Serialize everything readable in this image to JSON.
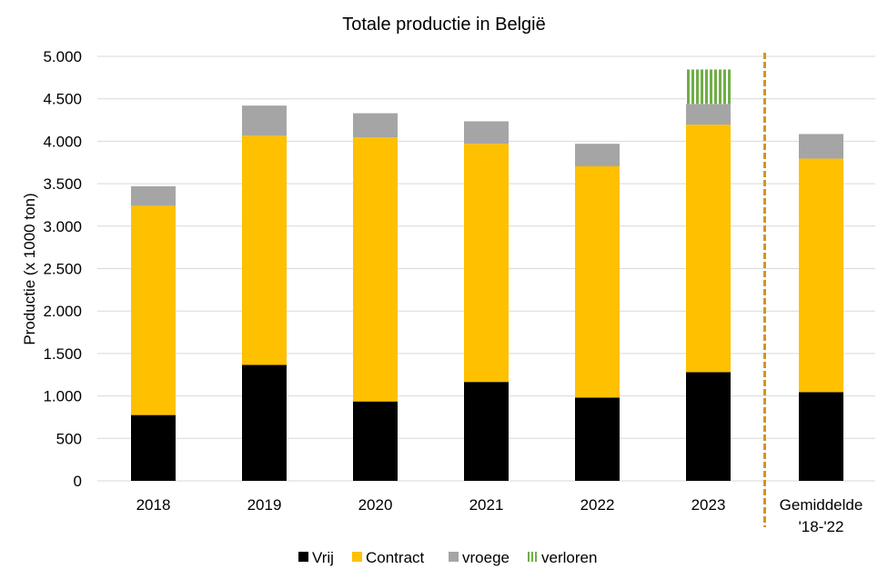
{
  "chart_data": {
    "type": "bar",
    "stacked": true,
    "title": "Totale productie  in België",
    "xlabel": "",
    "ylabel": "Productie (x 1000 ton)",
    "ylim": [
      0,
      5000
    ],
    "yticks": [
      0,
      500,
      1000,
      1500,
      2000,
      2500,
      3000,
      3500,
      4000,
      4500,
      5000
    ],
    "ytick_labels": [
      "0",
      "500",
      "1.000",
      "1.500",
      "2.000",
      "2.500",
      "3.000",
      "3.500",
      "4.000",
      "4.500",
      "5.000"
    ],
    "grid": true,
    "legend_position": "bottom",
    "categories": [
      "2018",
      "2019",
      "2020",
      "2021",
      "2022",
      "2023",
      "Gemiddelde '18-'22"
    ],
    "category_lines": [
      [
        "2018"
      ],
      [
        "2019"
      ],
      [
        "2020"
      ],
      [
        "2021"
      ],
      [
        "2022"
      ],
      [
        "2023"
      ],
      [
        "Gemiddelde",
        "'18-'22"
      ]
    ],
    "series": [
      {
        "name": "Vrij",
        "color": "#000000",
        "pattern": "solid",
        "values": [
          775,
          1365,
          935,
          1165,
          980,
          1280,
          1045
        ]
      },
      {
        "name": "Contract",
        "color": "#FFC000",
        "pattern": "solid",
        "values": [
          2465,
          2700,
          3110,
          2805,
          2725,
          2915,
          2750
        ]
      },
      {
        "name": "vroege",
        "color": "#A5A5A5",
        "pattern": "solid",
        "values": [
          230,
          355,
          285,
          265,
          265,
          245,
          290
        ]
      },
      {
        "name": "verloren",
        "color": "#70AD47",
        "pattern": "vertical-stripes",
        "values": [
          0,
          0,
          0,
          0,
          0,
          405,
          0
        ]
      }
    ],
    "annotations": [
      {
        "type": "vertical-dashed-line",
        "between": [
          "2023",
          "Gemiddelde '18-'22"
        ],
        "color": "#D4961E"
      }
    ]
  }
}
